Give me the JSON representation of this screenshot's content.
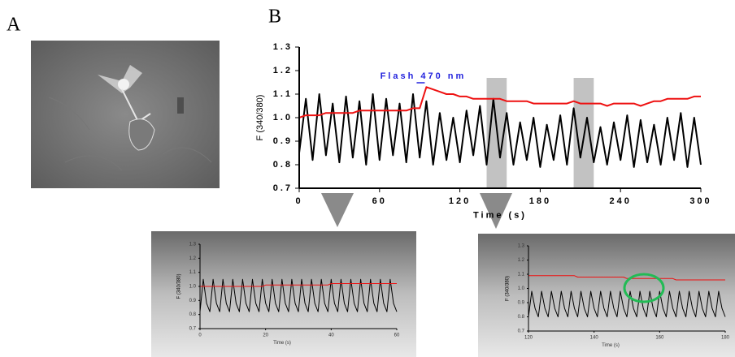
{
  "panel_labels": [
    "A",
    "B"
  ],
  "chart_data": [
    {
      "type": "line",
      "xlabel": "Time (s)",
      "ylabel": "F (340/380)",
      "annotation": "Flash 470 nm",
      "xlim": [
        0,
        300
      ],
      "xticks": [
        0,
        60,
        120,
        180,
        240,
        300
      ],
      "ylim": [
        0.7,
        1.3
      ],
      "yticks": [
        0.7,
        0.8,
        0.9,
        {
          "value": 1,
          "label": "1.0"
        },
        1.1,
        1.2,
        1.3
      ],
      "shaded_regions": [
        [
          140,
          155
        ],
        [
          205,
          220
        ]
      ],
      "x": [
        0,
        5,
        10,
        15,
        20,
        25,
        30,
        35,
        40,
        45,
        50,
        55,
        60,
        65,
        70,
        75,
        80,
        85,
        90,
        95,
        100,
        105,
        110,
        115,
        120,
        125,
        130,
        135,
        140,
        145,
        150,
        155,
        160,
        165,
        170,
        175,
        180,
        185,
        190,
        195,
        200,
        205,
        210,
        215,
        220,
        225,
        230,
        235,
        240,
        245,
        250,
        255,
        260,
        265,
        270,
        275,
        280,
        285,
        290,
        295,
        300
      ],
      "series": [
        {
          "color": "#000000",
          "values": [
            0.85,
            1.08,
            0.82,
            1.1,
            0.84,
            1.06,
            0.81,
            1.09,
            0.83,
            1.07,
            0.8,
            1.1,
            0.82,
            1.08,
            0.84,
            1.06,
            0.81,
            1.1,
            0.83,
            1.07,
            0.8,
            1.02,
            0.82,
            1.0,
            0.81,
            1.03,
            0.84,
            1.05,
            0.8,
            1.08,
            0.83,
            1.02,
            0.8,
            0.98,
            0.82,
            1.0,
            0.79,
            0.97,
            0.82,
            1.01,
            0.8,
            1.04,
            0.83,
            1.0,
            0.81,
            0.96,
            0.8,
            0.98,
            0.82,
            1.01,
            0.79,
            0.99,
            0.81,
            0.97,
            0.8,
            1.0,
            0.82,
            1.02,
            0.79,
            1.0,
            0.8
          ]
        },
        {
          "color": "#ee1111",
          "values": [
            1.0,
            1.01,
            1.01,
            1.01,
            1.02,
            1.02,
            1.02,
            1.02,
            1.02,
            1.03,
            1.03,
            1.03,
            1.03,
            1.03,
            1.03,
            1.03,
            1.03,
            1.04,
            1.04,
            1.13,
            1.12,
            1.11,
            1.1,
            1.1,
            1.09,
            1.09,
            1.08,
            1.08,
            1.08,
            1.08,
            1.08,
            1.07,
            1.07,
            1.07,
            1.07,
            1.06,
            1.06,
            1.06,
            1.06,
            1.06,
            1.06,
            1.07,
            1.06,
            1.06,
            1.06,
            1.06,
            1.05,
            1.06,
            1.06,
            1.06,
            1.06,
            1.05,
            1.06,
            1.07,
            1.07,
            1.08,
            1.08,
            1.08,
            1.08,
            1.09,
            1.09
          ]
        }
      ]
    },
    {
      "type": "line",
      "xlabel": "Time (s)",
      "ylabel": "F (340/380)",
      "xlim": [
        0,
        60
      ],
      "xticks": [
        0,
        20,
        40,
        60
      ],
      "ylim": [
        0.7,
        1.3
      ],
      "yticks": [
        0.7,
        0.8,
        0.9,
        {
          "value": 1,
          "label": "1.0"
        },
        1.1,
        1.2,
        1.3
      ],
      "x": [
        0,
        1,
        2,
        3,
        4,
        5,
        6,
        7,
        8,
        9,
        10,
        11,
        12,
        13,
        14,
        15,
        16,
        17,
        18,
        19,
        20,
        21,
        22,
        23,
        24,
        25,
        26,
        27,
        28,
        29,
        30,
        31,
        32,
        33,
        34,
        35,
        36,
        37,
        38,
        39,
        40,
        41,
        42,
        43,
        44,
        45,
        46,
        47,
        48,
        49,
        50,
        51,
        52,
        53,
        54,
        55,
        56,
        57,
        58,
        59,
        60
      ],
      "series": [
        {
          "color": "#000000",
          "values": [
            0.82,
            1.05,
            0.88,
            0.82,
            1.05,
            0.88,
            0.82,
            1.05,
            0.88,
            0.82,
            1.05,
            0.88,
            0.82,
            1.05,
            0.88,
            0.82,
            1.05,
            0.88,
            0.82,
            1.05,
            0.88,
            0.82,
            1.05,
            0.88,
            0.82,
            1.05,
            0.88,
            0.82,
            1.05,
            0.88,
            0.82,
            1.05,
            0.88,
            0.82,
            1.05,
            0.88,
            0.82,
            1.05,
            0.88,
            0.82,
            1.05,
            0.88,
            0.82,
            1.05,
            0.88,
            0.82,
            1.05,
            0.88,
            0.82,
            1.05,
            0.88,
            0.82,
            1.05,
            0.88,
            0.82,
            1.05,
            0.88,
            0.82,
            1.05,
            0.88,
            0.82
          ]
        },
        {
          "color": "#ee1111",
          "values": [
            1.0,
            1.0,
            1.0,
            1.0,
            1.0,
            1.0,
            1.0,
            1.0,
            1.0,
            1.0,
            1.0,
            1.0,
            1.0,
            1.0,
            1.0,
            1.0,
            1.0,
            1.0,
            1.0,
            1.0,
            1.01,
            1.01,
            1.01,
            1.01,
            1.01,
            1.01,
            1.01,
            1.01,
            1.01,
            1.01,
            1.01,
            1.01,
            1.01,
            1.01,
            1.01,
            1.01,
            1.01,
            1.01,
            1.01,
            1.01,
            1.02,
            1.02,
            1.02,
            1.02,
            1.02,
            1.02,
            1.02,
            1.02,
            1.02,
            1.02,
            1.02,
            1.02,
            1.02,
            1.02,
            1.02,
            1.02,
            1.02,
            1.02,
            1.02,
            1.02,
            1.02
          ]
        }
      ]
    },
    {
      "type": "line",
      "xlabel": "Time (s)",
      "ylabel": "F (340/380)",
      "xlim": [
        120,
        180
      ],
      "xticks": [
        120,
        140,
        160,
        180
      ],
      "ylim": [
        0.7,
        1.3
      ],
      "yticks": [
        0.7,
        0.8,
        0.9,
        {
          "value": 1,
          "label": "1.0"
        },
        1.1,
        1.2,
        1.3
      ],
      "x": [
        120,
        121,
        122,
        123,
        124,
        125,
        126,
        127,
        128,
        129,
        130,
        131,
        132,
        133,
        134,
        135,
        136,
        137,
        138,
        139,
        140,
        141,
        142,
        143,
        144,
        145,
        146,
        147,
        148,
        149,
        150,
        151,
        152,
        153,
        154,
        155,
        156,
        157,
        158,
        159,
        160,
        161,
        162,
        163,
        164,
        165,
        166,
        167,
        168,
        169,
        170,
        171,
        172,
        173,
        174,
        175,
        176,
        177,
        178,
        179,
        180
      ],
      "series": [
        {
          "color": "#000000",
          "values": [
            0.8,
            0.98,
            0.86,
            0.8,
            0.98,
            0.86,
            0.8,
            0.98,
            0.86,
            0.8,
            0.98,
            0.86,
            0.8,
            0.98,
            0.86,
            0.8,
            0.98,
            0.86,
            0.8,
            0.98,
            0.86,
            0.8,
            0.98,
            0.86,
            0.8,
            0.98,
            0.86,
            0.8,
            0.98,
            0.86,
            0.8,
            0.98,
            0.86,
            0.8,
            0.98,
            0.86,
            0.8,
            0.98,
            0.86,
            0.8,
            0.98,
            0.86,
            0.8,
            0.98,
            0.86,
            0.8,
            0.98,
            0.86,
            0.8,
            0.98,
            0.86,
            0.8,
            0.98,
            0.86,
            0.8,
            0.98,
            0.86,
            0.8,
            0.98,
            0.86,
            0.8
          ]
        },
        {
          "color": "#ee1111",
          "values": [
            1.09,
            1.09,
            1.09,
            1.09,
            1.09,
            1.09,
            1.09,
            1.09,
            1.09,
            1.09,
            1.09,
            1.09,
            1.09,
            1.09,
            1.09,
            1.08,
            1.08,
            1.08,
            1.08,
            1.08,
            1.08,
            1.08,
            1.08,
            1.08,
            1.08,
            1.08,
            1.08,
            1.08,
            1.08,
            1.08,
            1.07,
            1.07,
            1.07,
            1.07,
            1.07,
            1.07,
            1.07,
            1.07,
            1.07,
            1.07,
            1.07,
            1.07,
            1.07,
            1.07,
            1.07,
            1.06,
            1.06,
            1.06,
            1.06,
            1.06,
            1.06,
            1.06,
            1.06,
            1.06,
            1.06,
            1.06,
            1.06,
            1.06,
            1.06,
            1.06,
            1.06
          ]
        }
      ]
    }
  ]
}
